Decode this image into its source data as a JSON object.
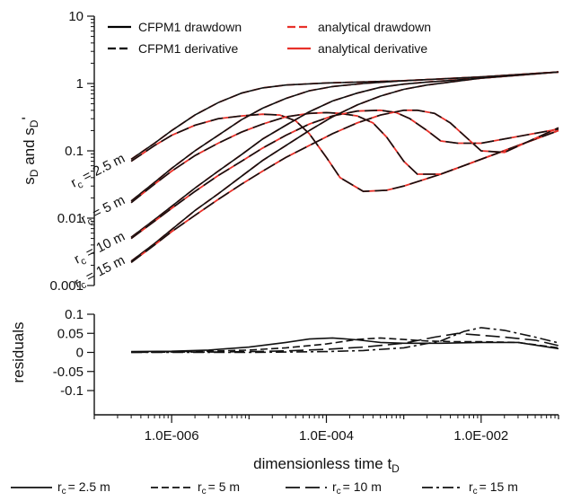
{
  "chart_data": [
    {
      "type": "line",
      "xlabel": "",
      "ylabel": "s_D and s_D'",
      "ylabel_parts": {
        "s1": "s",
        "sub1": "D",
        "mid": " and s",
        "sub2": "D",
        "prime": "'"
      },
      "x_scale": "log",
      "y_scale": "log",
      "xlim": [
        1e-07,
        0.1
      ],
      "ylim": [
        0.001,
        10
      ],
      "y_ticks": [
        {
          "value": 0.001,
          "label": "0.001"
        },
        {
          "value": 0.01,
          "label": "0.01"
        },
        {
          "value": 0.1,
          "label": "0.1"
        },
        {
          "value": 1,
          "label": "1"
        },
        {
          "value": 10,
          "label": "10"
        }
      ],
      "legend": {
        "placement": "top",
        "entries": [
          {
            "label": "CFPM1 drawdown",
            "color": "#000000",
            "style": "solid"
          },
          {
            "label": "analytical drawdown",
            "color": "#e8312a",
            "style": "dashed"
          },
          {
            "label": "CFPM1 derivative",
            "color": "#000000",
            "style": "dashed"
          },
          {
            "label": "analytical derivative",
            "color": "#e8312a",
            "style": "solid"
          }
        ]
      },
      "curve_labels": [
        {
          "r": "r",
          "sub": "c",
          "text": " = 2.5 m",
          "anchor_x": 3e-07,
          "anchor_y": 0.075
        },
        {
          "r": "r",
          "sub": "c",
          "text": " = 5 m",
          "anchor_x": 3e-07,
          "anchor_y": 0.018
        },
        {
          "r": "r",
          "sub": "c",
          "text": " = 10 m",
          "anchor_x": 3e-07,
          "anchor_y": 0.0052
        },
        {
          "r": "r",
          "sub": "c",
          "text": " = 15 m",
          "anchor_x": 3e-07,
          "anchor_y": 0.0023
        }
      ],
      "series": [
        {
          "rc": "2.5 m",
          "kind": "drawdown",
          "x": [
            3e-07,
            6e-07,
            1e-06,
            2e-06,
            4e-06,
            8e-06,
            1.5e-05,
            3e-05,
            0.0001,
            0.001,
            0.01,
            0.1
          ],
          "y": [
            0.075,
            0.13,
            0.2,
            0.34,
            0.52,
            0.72,
            0.86,
            0.95,
            1.02,
            1.1,
            1.25,
            1.48
          ]
        },
        {
          "rc": "2.5 m",
          "kind": "derivative",
          "x": [
            3e-07,
            6e-07,
            1e-06,
            2e-06,
            4e-06,
            8e-06,
            1.5e-05,
            2.5e-05,
            4e-05,
            6e-05,
            0.0001,
            0.00015,
            0.0003,
            0.0006,
            0.001,
            0.003,
            0.01,
            0.1
          ],
          "y": [
            0.07,
            0.12,
            0.17,
            0.24,
            0.3,
            0.33,
            0.35,
            0.34,
            0.28,
            0.18,
            0.08,
            0.04,
            0.025,
            0.026,
            0.03,
            0.045,
            0.075,
            0.2
          ]
        },
        {
          "rc": "5 m",
          "kind": "drawdown",
          "x": [
            3e-07,
            6e-07,
            1e-06,
            2e-06,
            4e-06,
            8e-06,
            1.5e-05,
            3e-05,
            6e-05,
            0.00012,
            0.0003,
            0.001,
            0.01,
            0.1
          ],
          "y": [
            0.018,
            0.034,
            0.055,
            0.1,
            0.17,
            0.29,
            0.43,
            0.6,
            0.78,
            0.9,
            1.0,
            1.1,
            1.25,
            1.48
          ]
        },
        {
          "rc": "5 m",
          "kind": "derivative",
          "x": [
            3e-07,
            6e-07,
            1e-06,
            2e-06,
            4e-06,
            8e-06,
            1.5e-05,
            3e-05,
            6e-05,
            0.0001,
            0.00015,
            0.00025,
            0.0004,
            0.0006,
            0.001,
            0.0015,
            0.003,
            0.01,
            0.1
          ],
          "y": [
            0.017,
            0.032,
            0.05,
            0.085,
            0.13,
            0.19,
            0.25,
            0.32,
            0.36,
            0.37,
            0.36,
            0.33,
            0.26,
            0.16,
            0.07,
            0.045,
            0.045,
            0.075,
            0.2
          ]
        },
        {
          "rc": "10 m",
          "kind": "drawdown",
          "x": [
            3e-07,
            6e-07,
            1e-06,
            2e-06,
            4e-06,
            8e-06,
            1.5e-05,
            3e-05,
            6e-05,
            0.00012,
            0.00025,
            0.0005,
            0.001,
            0.002,
            0.01,
            0.1
          ],
          "y": [
            0.0052,
            0.0095,
            0.015,
            0.028,
            0.05,
            0.088,
            0.15,
            0.24,
            0.38,
            0.55,
            0.72,
            0.88,
            0.98,
            1.05,
            1.2,
            1.48
          ]
        },
        {
          "rc": "10 m",
          "kind": "derivative",
          "x": [
            3e-07,
            6e-07,
            1e-06,
            2e-06,
            4e-06,
            8e-06,
            1.5e-05,
            3e-05,
            6e-05,
            0.00012,
            0.00025,
            0.0005,
            0.0008,
            0.0012,
            0.002,
            0.003,
            0.005,
            0.01,
            0.1
          ],
          "y": [
            0.005,
            0.009,
            0.014,
            0.025,
            0.043,
            0.07,
            0.11,
            0.17,
            0.25,
            0.33,
            0.39,
            0.4,
            0.37,
            0.3,
            0.2,
            0.14,
            0.13,
            0.13,
            0.21
          ]
        },
        {
          "rc": "15 m",
          "kind": "drawdown",
          "x": [
            3e-07,
            6e-07,
            1e-06,
            2e-06,
            4e-06,
            8e-06,
            1.5e-05,
            3e-05,
            6e-05,
            0.00012,
            0.00025,
            0.0005,
            0.001,
            0.002,
            0.004,
            0.01,
            0.1
          ],
          "y": [
            0.0023,
            0.0042,
            0.0068,
            0.013,
            0.023,
            0.042,
            0.072,
            0.12,
            0.2,
            0.32,
            0.48,
            0.65,
            0.82,
            0.95,
            1.05,
            1.2,
            1.48
          ]
        },
        {
          "rc": "15 m",
          "kind": "derivative",
          "x": [
            3e-07,
            6e-07,
            1e-06,
            2e-06,
            4e-06,
            8e-06,
            1.5e-05,
            3e-05,
            6e-05,
            0.00012,
            0.00025,
            0.0005,
            0.001,
            0.0015,
            0.0025,
            0.004,
            0.006,
            0.01,
            0.02,
            0.1
          ],
          "y": [
            0.0022,
            0.004,
            0.0063,
            0.011,
            0.019,
            0.032,
            0.05,
            0.08,
            0.12,
            0.18,
            0.26,
            0.34,
            0.4,
            0.4,
            0.36,
            0.26,
            0.17,
            0.1,
            0.095,
            0.22
          ]
        }
      ]
    },
    {
      "type": "line",
      "ylabel": "residuals",
      "xlabel": "dimensionless time t_D",
      "xlabel_parts": {
        "main": "dimensionless time t",
        "sub": "D"
      },
      "x_scale": "log",
      "xlim": [
        1e-07,
        0.1
      ],
      "ylim": [
        -0.1,
        0.1
      ],
      "x_ticks": [
        {
          "value": 1e-06,
          "label": "1.0E-006"
        },
        {
          "value": 0.0001,
          "label": "1.0E-004"
        },
        {
          "value": 0.01,
          "label": "1.0E-002"
        }
      ],
      "y_ticks": [
        {
          "value": 0.1,
          "label": "0.1"
        },
        {
          "value": 0.05,
          "label": "0.05"
        },
        {
          "value": 0,
          "label": "0"
        },
        {
          "value": -0.05,
          "label": "-0.05"
        },
        {
          "value": -0.1,
          "label": "-0.1"
        }
      ],
      "legend": {
        "placement": "bottom",
        "entries": [
          {
            "r": "r",
            "sub": "c",
            "text": "= 2.5 m",
            "style": "solid"
          },
          {
            "r": "r",
            "sub": "c",
            "text": "= 5 m",
            "style": "dashed"
          },
          {
            "r": "r",
            "sub": "c",
            "text": "= 10 m",
            "style": "long-dash"
          },
          {
            "r": "r",
            "sub": "c",
            "text": "= 15 m",
            "style": "dash-dot"
          }
        ]
      },
      "series": [
        {
          "rc": "2.5 m",
          "x": [
            3e-07,
            1e-06,
            3e-06,
            1e-05,
            3e-05,
            6e-05,
            0.00012,
            0.00025,
            0.0005,
            0.001,
            0.003,
            0.01,
            0.03,
            0.1
          ],
          "y": [
            0.002,
            0.003,
            0.006,
            0.014,
            0.026,
            0.035,
            0.038,
            0.033,
            0.026,
            0.024,
            0.024,
            0.026,
            0.026,
            0.01
          ]
        },
        {
          "rc": "5 m",
          "x": [
            3e-07,
            1e-06,
            3e-06,
            1e-05,
            3e-05,
            0.0001,
            0.00025,
            0.0005,
            0.001,
            0.002,
            0.005,
            0.01,
            0.03,
            0.1
          ],
          "y": [
            0.001,
            0.002,
            0.003,
            0.006,
            0.012,
            0.022,
            0.034,
            0.038,
            0.034,
            0.03,
            0.028,
            0.028,
            0.026,
            0.012
          ]
        },
        {
          "rc": "10 m",
          "x": [
            3e-07,
            1e-06,
            3e-06,
            1e-05,
            3e-05,
            0.0001,
            0.0003,
            0.001,
            0.0025,
            0.005,
            0.01,
            0.02,
            0.05,
            0.1
          ],
          "y": [
            0.0,
            0.001,
            0.001,
            0.002,
            0.004,
            0.008,
            0.014,
            0.024,
            0.04,
            0.05,
            0.045,
            0.04,
            0.032,
            0.018
          ]
        },
        {
          "rc": "15 m",
          "x": [
            3e-07,
            1e-06,
            3e-06,
            1e-05,
            3e-05,
            0.0001,
            0.0003,
            0.001,
            0.003,
            0.006,
            0.01,
            0.02,
            0.05,
            0.1
          ],
          "y": [
            0.0,
            0.0,
            0.0,
            0.0,
            0.001,
            0.002,
            0.005,
            0.012,
            0.03,
            0.055,
            0.065,
            0.058,
            0.04,
            0.025
          ]
        }
      ]
    }
  ]
}
